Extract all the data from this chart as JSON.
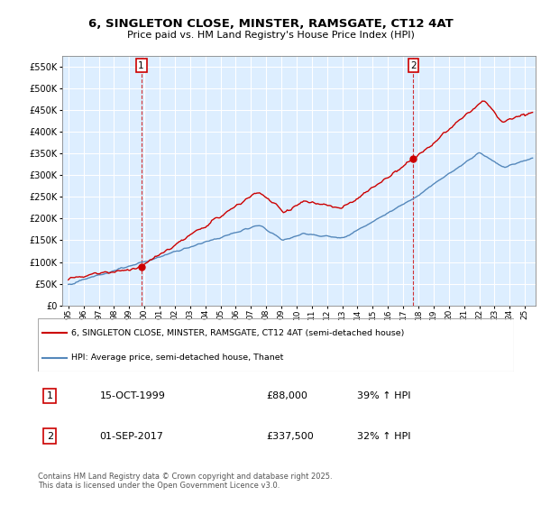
{
  "title": "6, SINGLETON CLOSE, MINSTER, RAMSGATE, CT12 4AT",
  "subtitle": "Price paid vs. HM Land Registry's House Price Index (HPI)",
  "legend_label_red": "6, SINGLETON CLOSE, MINSTER, RAMSGATE, CT12 4AT (semi-detached house)",
  "legend_label_blue": "HPI: Average price, semi-detached house, Thanet",
  "sale1_date": "15-OCT-1999",
  "sale1_price": 88000,
  "sale1_label": "39% ↑ HPI",
  "sale2_date": "01-SEP-2017",
  "sale2_price": 337500,
  "sale2_label": "32% ↑ HPI",
  "footer": "Contains HM Land Registry data © Crown copyright and database right 2025.\nThis data is licensed under the Open Government Licence v3.0.",
  "red_color": "#cc0000",
  "blue_color": "#5588bb",
  "plot_bg_color": "#ddeeff",
  "background_color": "#ffffff",
  "grid_color": "#ffffff",
  "ylim": [
    0,
    575000
  ],
  "xlim_start": 1994.6,
  "xlim_end": 2025.7,
  "sale1_x": 1999.79,
  "sale2_x": 2017.67
}
